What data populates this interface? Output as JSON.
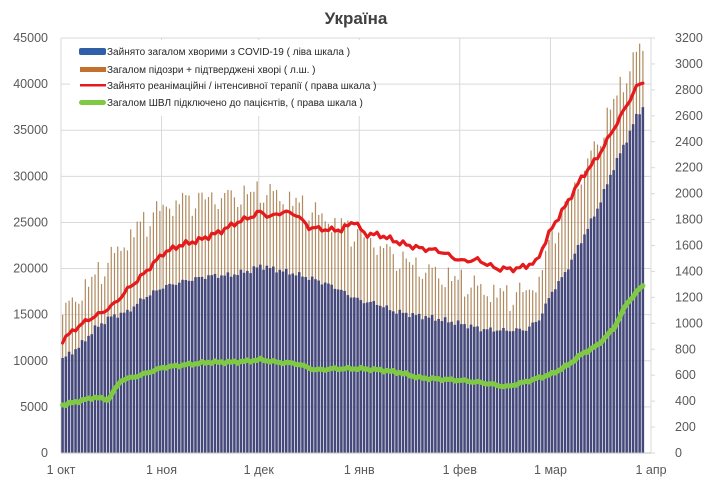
{
  "chart_data": {
    "type": "bar+line",
    "title": "Україна",
    "xlabel": "",
    "ylabel_left": "",
    "ylabel_right": "",
    "x_range_days": [
      0,
      182
    ],
    "x_ticks": [
      {
        "day": 0,
        "label": "1 окт"
      },
      {
        "day": 31,
        "label": "1 ноя"
      },
      {
        "day": 61,
        "label": "1 дек"
      },
      {
        "day": 92,
        "label": "1 янв"
      },
      {
        "day": 123,
        "label": "1 фев"
      },
      {
        "day": 151,
        "label": "1 мар"
      },
      {
        "day": 182,
        "label": "1 апр"
      }
    ],
    "ylim_left": [
      0,
      45000
    ],
    "yticks_left": [
      "0",
      "5000",
      "10000",
      "15000",
      "20000",
      "25000",
      "30000",
      "35000",
      "40000",
      "45000"
    ],
    "ylim_right": [
      0,
      3200
    ],
    "yticks_right": [
      "0",
      "200",
      "400",
      "600",
      "800",
      "1000",
      "1200",
      "1400",
      "1600",
      "1800",
      "2000",
      "2200",
      "2400",
      "2600",
      "2800",
      "3000",
      "3200"
    ],
    "grid": true,
    "legend_position": "top-left",
    "last_day": 179,
    "series": [
      {
        "name": "Зайнято загалом хворими з COVID-19 ( ліва шкала )",
        "type": "bar",
        "axis": "left",
        "color": "#44487a",
        "legend_color": "#2e5fa8",
        "anchors": [
          [
            0,
            10200
          ],
          [
            5,
            11500
          ],
          [
            10,
            13500
          ],
          [
            15,
            14800
          ],
          [
            20,
            15300
          ],
          [
            25,
            16800
          ],
          [
            31,
            18000
          ],
          [
            38,
            18700
          ],
          [
            45,
            19200
          ],
          [
            52,
            19300
          ],
          [
            58,
            19800
          ],
          [
            61,
            20300
          ],
          [
            66,
            19900
          ],
          [
            72,
            19400
          ],
          [
            78,
            18800
          ],
          [
            84,
            18000
          ],
          [
            88,
            17200
          ],
          [
            92,
            16500
          ],
          [
            97,
            16200
          ],
          [
            102,
            15400
          ],
          [
            108,
            15000
          ],
          [
            115,
            14600
          ],
          [
            123,
            14000
          ],
          [
            130,
            13400
          ],
          [
            137,
            13300
          ],
          [
            143,
            13400
          ],
          [
            147,
            14500
          ],
          [
            151,
            17500
          ],
          [
            155,
            19500
          ],
          [
            160,
            23000
          ],
          [
            165,
            26500
          ],
          [
            170,
            31000
          ],
          [
            174,
            34000
          ],
          [
            177,
            36500
          ],
          [
            179,
            37500
          ]
        ]
      },
      {
        "name": "Загалом підозри + підтверджені хворі ( л.ш. )",
        "type": "bar",
        "axis": "left",
        "color": "#b08a5e",
        "legend_color": "#c5702e",
        "anchors": [
          [
            0,
            15500
          ],
          [
            5,
            17500
          ],
          [
            10,
            19500
          ],
          [
            15,
            21500
          ],
          [
            20,
            23500
          ],
          [
            25,
            25500
          ],
          [
            31,
            27000
          ],
          [
            38,
            27800
          ],
          [
            45,
            28000
          ],
          [
            52,
            28200
          ],
          [
            58,
            28500
          ],
          [
            61,
            28800
          ],
          [
            66,
            28300
          ],
          [
            72,
            27500
          ],
          [
            78,
            26300
          ],
          [
            84,
            25300
          ],
          [
            88,
            24800
          ],
          [
            92,
            24000
          ],
          [
            97,
            23000
          ],
          [
            102,
            21800
          ],
          [
            108,
            20800
          ],
          [
            115,
            19800
          ],
          [
            123,
            19000
          ],
          [
            130,
            18000
          ],
          [
            137,
            17500
          ],
          [
            143,
            17800
          ],
          [
            147,
            19200
          ],
          [
            151,
            24000
          ],
          [
            155,
            27000
          ],
          [
            160,
            30500
          ],
          [
            165,
            34000
          ],
          [
            170,
            38500
          ],
          [
            174,
            41500
          ],
          [
            177,
            43500
          ],
          [
            179,
            44500
          ]
        ]
      },
      {
        "name": "Зайнято реанімаційні / інтенсивної терапії ( права шкала )",
        "type": "line",
        "axis": "right",
        "color": "#e41a1c",
        "anchors": [
          [
            0,
            870
          ],
          [
            4,
            960
          ],
          [
            8,
            1030
          ],
          [
            12,
            1080
          ],
          [
            16,
            1150
          ],
          [
            20,
            1260
          ],
          [
            25,
            1380
          ],
          [
            31,
            1540
          ],
          [
            36,
            1600
          ],
          [
            42,
            1640
          ],
          [
            48,
            1700
          ],
          [
            54,
            1780
          ],
          [
            58,
            1820
          ],
          [
            61,
            1860
          ],
          [
            64,
            1820
          ],
          [
            68,
            1860
          ],
          [
            72,
            1840
          ],
          [
            76,
            1740
          ],
          [
            82,
            1720
          ],
          [
            86,
            1720
          ],
          [
            90,
            1790
          ],
          [
            93,
            1690
          ],
          [
            98,
            1680
          ],
          [
            104,
            1620
          ],
          [
            110,
            1580
          ],
          [
            116,
            1560
          ],
          [
            123,
            1480
          ],
          [
            128,
            1490
          ],
          [
            134,
            1420
          ],
          [
            140,
            1420
          ],
          [
            146,
            1470
          ],
          [
            151,
            1740
          ],
          [
            155,
            1900
          ],
          [
            160,
            2120
          ],
          [
            165,
            2280
          ],
          [
            170,
            2500
          ],
          [
            174,
            2680
          ],
          [
            177,
            2820
          ],
          [
            179,
            2860
          ]
        ]
      },
      {
        "name": "Загалом ШВЛ  підключено до пацієнтів, ( права шкала )",
        "type": "line",
        "axis": "right",
        "color": "#7fc944",
        "anchors": [
          [
            0,
            370
          ],
          [
            5,
            400
          ],
          [
            10,
            430
          ],
          [
            14,
            410
          ],
          [
            18,
            560
          ],
          [
            24,
            600
          ],
          [
            31,
            660
          ],
          [
            38,
            680
          ],
          [
            45,
            700
          ],
          [
            52,
            700
          ],
          [
            58,
            710
          ],
          [
            61,
            720
          ],
          [
            66,
            700
          ],
          [
            72,
            690
          ],
          [
            78,
            640
          ],
          [
            84,
            650
          ],
          [
            92,
            650
          ],
          [
            98,
            640
          ],
          [
            104,
            620
          ],
          [
            110,
            580
          ],
          [
            116,
            570
          ],
          [
            123,
            560
          ],
          [
            130,
            540
          ],
          [
            137,
            510
          ],
          [
            143,
            550
          ],
          [
            151,
            610
          ],
          [
            156,
            680
          ],
          [
            160,
            760
          ],
          [
            165,
            830
          ],
          [
            170,
            960
          ],
          [
            174,
            1150
          ],
          [
            177,
            1240
          ],
          [
            179,
            1290
          ]
        ]
      }
    ]
  }
}
